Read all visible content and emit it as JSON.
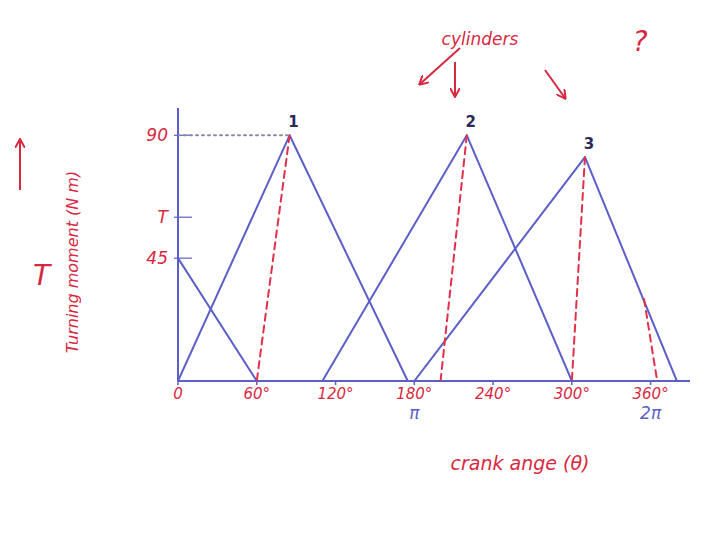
{
  "chart_data": {
    "type": "line",
    "x_label": "crank ange (θ)",
    "y_label": "Turning moment (N m)",
    "xlim": [
      0,
      390
    ],
    "ylim": [
      0,
      100
    ],
    "xticks": [
      {
        "value": 0,
        "label": "0"
      },
      {
        "value": 60,
        "label": "60°"
      },
      {
        "value": 120,
        "label": "120°"
      },
      {
        "value": 180,
        "label": "180°"
      },
      {
        "value": 240,
        "label": "240°"
      },
      {
        "value": 300,
        "label": "300°"
      },
      {
        "value": 360,
        "label": "360°"
      }
    ],
    "yticks": [
      45,
      {
        "value": 60,
        "label": "T"
      },
      90
    ],
    "grid": false,
    "series": [
      {
        "x": [
          0,
          60
        ],
        "values": [
          45,
          0
        ],
        "color": "#5b5fc7",
        "line_style": "solid"
      },
      {
        "name": "1",
        "x": [
          0,
          85,
          175
        ],
        "values": [
          0,
          90,
          0
        ],
        "color": "#5b5fc7",
        "line_style": "solid"
      },
      {
        "name": "2",
        "x": [
          110,
          220,
          300
        ],
        "values": [
          0,
          90,
          0
        ],
        "color": "#5b5fc7",
        "line_style": "solid"
      },
      {
        "name": "3",
        "x": [
          180,
          310,
          380
        ],
        "values": [
          0,
          82,
          0
        ],
        "color": "#5b5fc7",
        "line_style": "solid"
      },
      {
        "x": [
          85,
          60
        ],
        "values": [
          90,
          0
        ],
        "color": "#e0304a",
        "line_style": "dashed"
      },
      {
        "x": [
          220,
          200
        ],
        "values": [
          90,
          0
        ],
        "color": "#e0304a",
        "line_style": "dashed"
      },
      {
        "x": [
          310,
          300
        ],
        "values": [
          82,
          0
        ],
        "color": "#e0304a",
        "line_style": "dashed"
      },
      {
        "x": [
          355,
          365
        ],
        "values": [
          30,
          0
        ],
        "color": "#e0304a",
        "line_style": "dashed"
      },
      {
        "x": [
          0,
          85
        ],
        "values": [
          90,
          90
        ],
        "color": "#8a8aa8",
        "line_style": "dotted"
      }
    ],
    "annotations": [
      {
        "text": "cylinders",
        "x": 230,
        "y": 123
      },
      {
        "text": "?",
        "x": 352,
        "y": 121
      },
      {
        "text": "π",
        "x": 180,
        "y": -14
      },
      {
        "text": "2π",
        "x": 360,
        "y": -14
      },
      {
        "text": "T",
        "x": -104,
        "y": 35
      }
    ]
  }
}
